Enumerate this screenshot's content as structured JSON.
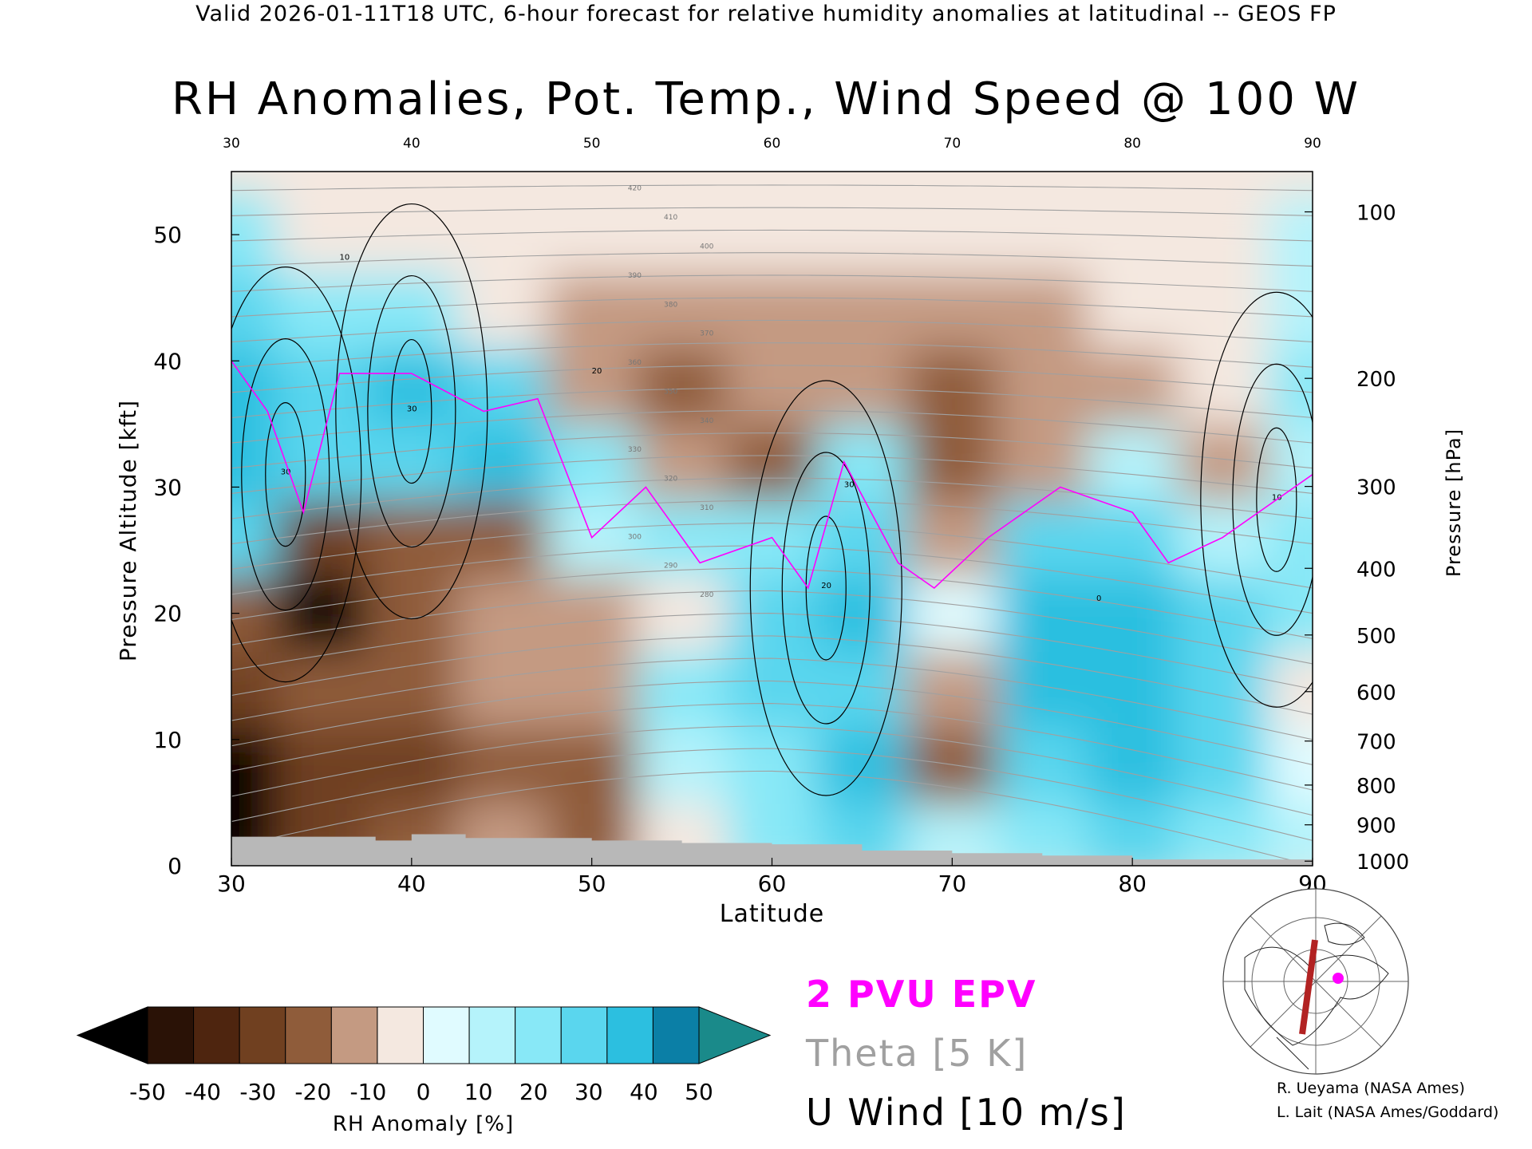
{
  "header": "Valid 2026-01-11T18 UTC, 6-hour forecast for relative humidity anomalies at latitudinal -- GEOS FP",
  "title": "RH Anomalies, Pot. Temp., Wind Speed @ 100 W",
  "colors": {
    "dry_extreme": "#000000",
    "dry": "#5a2a10",
    "neutral": "#f4e8e0",
    "moist": "#5ee0f4",
    "moist_extreme": "#148c8c",
    "epv": "#ff00ff",
    "theta": "#a0a0a0",
    "wind": "#000000",
    "terrain": "#b8b8b8",
    "track": "#b22222"
  },
  "legend": {
    "epv": "2 PVU EPV",
    "theta": "Theta [5 K]",
    "wind": "U Wind [10 m/s]"
  },
  "credits": {
    "line1": "R. Ueyama (NASA Ames)",
    "line2": "L. Lait (NASA Ames/Goddard)"
  },
  "colorbar": {
    "label": "RH Anomaly [%]",
    "ticks": [
      "-50",
      "-40",
      "-30",
      "-20",
      "-10",
      "0",
      "10",
      "20",
      "30",
      "40",
      "50"
    ],
    "colors": [
      "#2a1206",
      "#4e250f",
      "#704020",
      "#8f5c3a",
      "#c49a82",
      "#f4e8e0",
      "#e0fbff",
      "#b5f3fb",
      "#88e8f7",
      "#5ad6ee",
      "#2cbfe0",
      "#0b7fa6"
    ],
    "under_color": "#000000",
    "over_color": "#1a8a8a"
  },
  "chart_data": {
    "type": "heatmap",
    "xlabel": "Latitude",
    "ylabel_left": "Pressure Altitude [kft]",
    "ylabel_right": "Pressure [hPa]",
    "xlim": [
      30,
      90
    ],
    "ylim": [
      0,
      55
    ],
    "x_ticks": [
      "30",
      "40",
      "50",
      "60",
      "70",
      "80",
      "90"
    ],
    "y_ticks_left": [
      "0",
      "10",
      "20",
      "30",
      "40",
      "50"
    ],
    "y_ticks_right": [
      "100",
      "200",
      "300",
      "400",
      "500",
      "600",
      "700",
      "800",
      "900",
      "1000"
    ],
    "theta_labels": [
      "420",
      "410",
      "400",
      "390",
      "380",
      "370",
      "360",
      "350",
      "340",
      "330",
      "320",
      "310",
      "300",
      "290",
      "280"
    ],
    "wind_labels": [
      "10",
      "20",
      "30",
      "0"
    ],
    "fields": {
      "latitude": [
        30,
        35,
        40,
        45,
        50,
        55,
        60,
        65,
        70,
        75,
        80,
        85,
        90
      ],
      "altitude_kft": [
        2,
        8,
        14,
        20,
        26,
        32,
        38,
        44,
        50
      ],
      "rh_anomaly_pct": [
        [
          -50,
          -40,
          -30,
          -20,
          -30,
          -10,
          20,
          30,
          10,
          20,
          30,
          20,
          10
        ],
        [
          -50,
          -40,
          -40,
          -30,
          -30,
          10,
          20,
          40,
          -30,
          30,
          40,
          30,
          0
        ],
        [
          -40,
          -30,
          -30,
          -20,
          -20,
          20,
          30,
          30,
          -20,
          40,
          40,
          30,
          -10
        ],
        [
          -30,
          -50,
          -30,
          -20,
          -20,
          -10,
          30,
          40,
          0,
          40,
          40,
          30,
          20
        ],
        [
          30,
          -40,
          -30,
          -30,
          10,
          20,
          20,
          30,
          -20,
          30,
          30,
          10,
          20
        ],
        [
          40,
          30,
          30,
          40,
          20,
          -20,
          -30,
          20,
          -30,
          -20,
          10,
          -20,
          10
        ],
        [
          40,
          30,
          40,
          30,
          -20,
          -30,
          -20,
          -20,
          -30,
          -20,
          -20,
          -10,
          20
        ],
        [
          30,
          20,
          20,
          -10,
          -20,
          -20,
          -20,
          -20,
          -20,
          -20,
          -10,
          -10,
          10
        ],
        [
          20,
          -10,
          -10,
          -10,
          -10,
          -10,
          -10,
          -10,
          -10,
          -10,
          -10,
          -10,
          10
        ]
      ]
    },
    "epv_2pvu_altitude_kft": [
      [
        30,
        40
      ],
      [
        32,
        36
      ],
      [
        34,
        28
      ],
      [
        36,
        39
      ],
      [
        40,
        39
      ],
      [
        44,
        36
      ],
      [
        47,
        37
      ],
      [
        50,
        26
      ],
      [
        53,
        30
      ],
      [
        56,
        24
      ],
      [
        60,
        26
      ],
      [
        62,
        22
      ],
      [
        64,
        32
      ],
      [
        67,
        24
      ],
      [
        69,
        22
      ],
      [
        72,
        26
      ],
      [
        76,
        30
      ],
      [
        80,
        28
      ],
      [
        82,
        24
      ],
      [
        85,
        26
      ],
      [
        90,
        31
      ]
    ],
    "wind_jets": [
      {
        "lat": 33,
        "alt_kft": 31,
        "label": "30"
      },
      {
        "lat": 40,
        "alt_kft": 36,
        "label": "30"
      },
      {
        "lat": 63,
        "alt_kft": 22,
        "label": "20"
      },
      {
        "lat": 88,
        "alt_kft": 29,
        "label": "10"
      }
    ]
  }
}
